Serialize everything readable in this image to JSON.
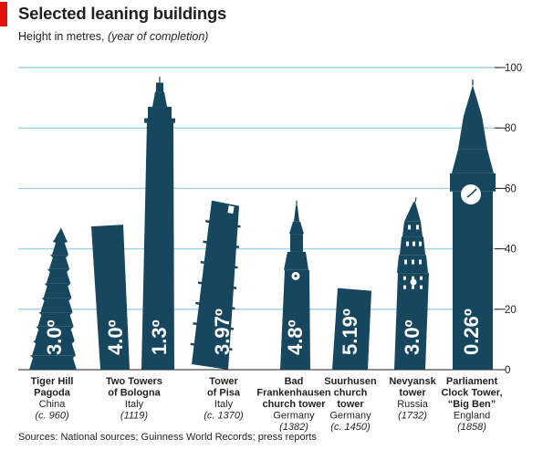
{
  "header": {
    "title": "Selected leaning buildings",
    "subtitle": "Height in metres,",
    "subtitle_italic": "(year of completion)"
  },
  "source": "Sources: National sources; Guinness World Records; press reports",
  "colors": {
    "building": "#17475f",
    "grid": "#9dd1e3",
    "accent_red": "#e3120b",
    "text": "#231f20"
  },
  "chart_data": {
    "type": "bar",
    "title": "Selected leaning buildings",
    "subtitle": "Height in metres, (year of completion)",
    "ylim": [
      0,
      100
    ],
    "yticks": [
      0,
      20,
      40,
      60,
      80,
      100
    ],
    "y_axis_side": "right",
    "grid": true,
    "series": [
      {
        "name": "Tiger Hill Pagoda",
        "country": "China",
        "year": "(c. 960)",
        "height": 47,
        "lean": "3.0º"
      },
      {
        "name": "Two Towers of Bologna (Garisenda)",
        "country": "Italy",
        "year": "(1119)",
        "height": 48,
        "lean": "4.0º"
      },
      {
        "name": "Two Towers of Bologna (Asinelli)",
        "country": "Italy",
        "year": "(1119)",
        "height": 97,
        "lean": "1.3º"
      },
      {
        "name": "Tower of Pisa",
        "country": "Italy",
        "year": "(c. 1370)",
        "height": 56,
        "lean": "3.97º"
      },
      {
        "name": "Bad Frankenhausen church tower",
        "country": "Germany",
        "year": "(1382)",
        "height": 56,
        "lean": "4.8º"
      },
      {
        "name": "Suurhusen church tower",
        "country": "Germany",
        "year": "(c. 1450)",
        "height": 27,
        "lean": "5.19º"
      },
      {
        "name": "Nevyansk tower",
        "country": "Russia",
        "year": "(1732)",
        "height": 57,
        "lean": "3.0º"
      },
      {
        "name": "Parliament Clock Tower, “Big Ben”",
        "country": "England",
        "year": "(1858)",
        "height": 96,
        "lean": "0.26º"
      }
    ],
    "labels": [
      {
        "name_lines": [
          "Tiger Hill",
          "Pagoda"
        ],
        "country": "China",
        "year": "(c. 960)"
      },
      {
        "name_lines": [
          "Two Towers",
          "of Bologna"
        ],
        "country": "Italy",
        "year": "(1119)"
      },
      {
        "name_lines": [
          "Tower",
          "of Pisa"
        ],
        "country": "Italy",
        "year": "(c. 1370)"
      },
      {
        "name_lines": [
          "Bad",
          "Frankenhausen",
          "church tower"
        ],
        "country": "Germany",
        "year": "(1382)"
      },
      {
        "name_lines": [
          "Suurhusen",
          "church",
          "tower"
        ],
        "country": "Germany",
        "year": "(c. 1450)"
      },
      {
        "name_lines": [
          "Nevyansk",
          "tower"
        ],
        "country": "Russia",
        "year": "(1732)"
      },
      {
        "name_lines": [
          "Parliament",
          "Clock Tower,",
          "“Big Ben”"
        ],
        "country": "England",
        "year": "(1858)"
      }
    ]
  }
}
